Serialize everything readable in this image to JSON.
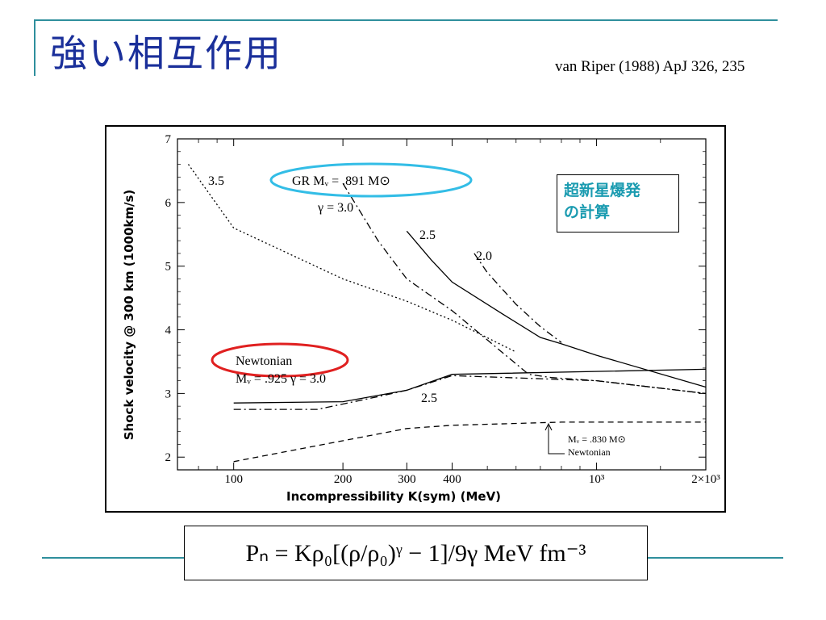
{
  "slide": {
    "title": "強い相互作用",
    "citation": "van Riper (1988) ApJ 326, 235",
    "note_line1": "超新星爆発",
    "note_line2": "の計算",
    "formula": "Pₙ = Kρ₀[(ρ/ρ₀)ᵞ − 1]/9γ MeV fm⁻³",
    "colors": {
      "title": "#1a2f9a",
      "accent_line": "#2f8f9d",
      "note": "#1a9bb0",
      "gr_ellipse": "#33bde6",
      "newtonian_ellipse": "#e02020"
    }
  },
  "chart_data": {
    "type": "line",
    "xlabel": "Incompressibility  K(sym)  (MeV)",
    "ylabel": "Shock velocity @ 300 km (1000km/s)",
    "xscale": "log",
    "xlim": [
      70,
      2000
    ],
    "ylim": [
      1.8,
      7
    ],
    "x_ticks": [
      100,
      200,
      300,
      400,
      1000,
      2000
    ],
    "x_tick_labels": [
      "100",
      "200",
      "300",
      "400",
      "10³",
      "2×10³"
    ],
    "y_ticks": [
      2,
      3,
      4,
      5,
      6,
      7
    ],
    "y_tick_labels": [
      "2",
      "3",
      "4",
      "5",
      "6",
      "7"
    ],
    "series": [
      {
        "name": "3.5",
        "style": "dotted",
        "x": [
          75,
          100,
          200,
          300,
          400,
          600
        ],
        "y": [
          6.6,
          5.6,
          4.8,
          4.45,
          4.15,
          3.65
        ]
      },
      {
        "name": "γ = 3.0",
        "style": "dashdot",
        "x": [
          200,
          250,
          300,
          400,
          650,
          750,
          1000,
          2000
        ],
        "y": [
          6.3,
          5.4,
          4.8,
          4.3,
          3.3,
          3.25,
          3.2,
          3.0
        ]
      },
      {
        "name": "2.5",
        "style": "solid",
        "x": [
          300,
          350,
          400,
          550,
          700,
          800,
          1000,
          2000
        ],
        "y": [
          5.55,
          5.1,
          4.75,
          4.25,
          3.88,
          3.78,
          3.6,
          3.1
        ]
      },
      {
        "name": "2.0",
        "style": "dashdot",
        "x": [
          460,
          500,
          600,
          700,
          800
        ],
        "y": [
          5.2,
          4.9,
          4.4,
          4.05,
          3.8
        ]
      },
      {
        "name": "Newtonian γ = 3.0",
        "style": "solid",
        "x": [
          100,
          200,
          300,
          400,
          2000
        ],
        "y": [
          2.85,
          2.87,
          3.05,
          3.3,
          3.38
        ]
      },
      {
        "name": "Newtonian 2.5",
        "style": "dashdot",
        "x": [
          100,
          170,
          250,
          300,
          400,
          1000,
          2000
        ],
        "y": [
          2.75,
          2.75,
          2.95,
          3.05,
          3.28,
          3.2,
          3.0
        ]
      },
      {
        "name": "Newtonian 2.0",
        "style": "dashed",
        "x": [
          100,
          300,
          400,
          800,
          2000
        ],
        "y": [
          1.93,
          2.45,
          2.5,
          2.55,
          2.55
        ]
      }
    ],
    "annotations": [
      {
        "text": "3.5"
      },
      {
        "text": "GR  Mᵥ = .891 M⊙"
      },
      {
        "text": "γ = 3.0"
      },
      {
        "text": "2.5"
      },
      {
        "text": "2.0"
      },
      {
        "text": "Newtonian"
      },
      {
        "text": "Mᵥ = .925   γ = 3.0"
      },
      {
        "text": "2.5"
      },
      {
        "text": "Mᵥ = .830 M⊙"
      },
      {
        "text": "Newtonian"
      }
    ]
  }
}
